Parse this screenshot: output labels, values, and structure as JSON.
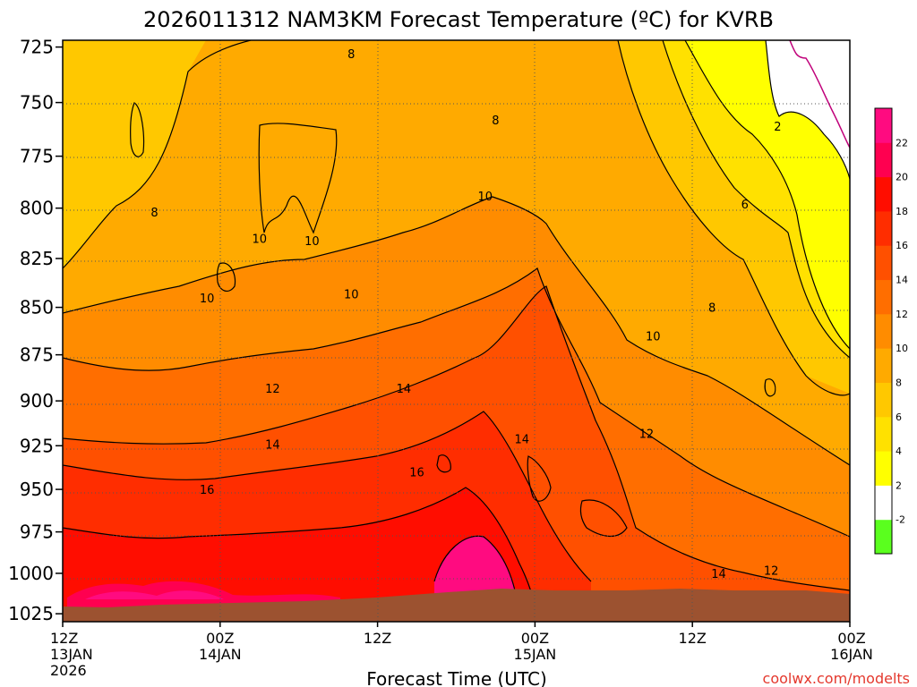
{
  "chart_data": {
    "type": "heatmap",
    "title": "2026011312 NAM3KM Forecast Temperature (ºC) for KVRB",
    "xlabel": "Forecast Time (UTC)",
    "ylabel": "",
    "credit": "coolwx.com/modelts",
    "y_axis": {
      "scale": "pressure (hPa, inverted)",
      "ylim": [
        1030,
        722
      ],
      "ticks": [
        "725",
        "750",
        "775",
        "800",
        "825",
        "850",
        "875",
        "900",
        "925",
        "950",
        "975",
        "1000",
        "1025"
      ]
    },
    "x_axis": {
      "xlim_hours": [
        0,
        60
      ],
      "ticks": [
        {
          "hour": 0,
          "line1": "12Z",
          "line2": "13JAN",
          "line3": "2026"
        },
        {
          "hour": 12,
          "line1": "00Z",
          "line2": "14JAN",
          "line3": ""
        },
        {
          "hour": 24,
          "line1": "12Z",
          "line2": "",
          "line3": ""
        },
        {
          "hour": 36,
          "line1": "00Z",
          "line2": "15JAN",
          "line3": ""
        },
        {
          "hour": 48,
          "line1": "12Z",
          "line2": "",
          "line3": ""
        },
        {
          "hour": 60,
          "line1": "00Z",
          "line2": "16JAN",
          "line3": ""
        }
      ]
    },
    "grid": true,
    "color_scale": [
      {
        "label": "-2",
        "color": "#5aff1e"
      },
      {
        "label": "2",
        "color": "#ffffff"
      },
      {
        "label": "4",
        "color": "#ffff00"
      },
      {
        "label": "6",
        "color": "#ffe100"
      },
      {
        "label": "8",
        "color": "#ffc800"
      },
      {
        "label": "10",
        "color": "#ffaa00"
      },
      {
        "label": "12",
        "color": "#ff8c00"
      },
      {
        "label": "14",
        "color": "#ff6e00"
      },
      {
        "label": "16",
        "color": "#ff5000"
      },
      {
        "label": "18",
        "color": "#ff2d00"
      },
      {
        "label": "20",
        "color": "#ff0d00"
      },
      {
        "label": "22",
        "color": "#ff0050"
      },
      {
        "label": "",
        "color": "#ff0b80"
      }
    ],
    "contour_labels": [
      {
        "text": "8",
        "hour": 22.0,
        "p": 728
      },
      {
        "text": "8",
        "hour": 33.0,
        "p": 758
      },
      {
        "text": "2",
        "hour": 54.5,
        "p": 761
      },
      {
        "text": "10",
        "hour": 32.2,
        "p": 794
      },
      {
        "text": "6",
        "hour": 52.0,
        "p": 798
      },
      {
        "text": "8",
        "hour": 7.0,
        "p": 802
      },
      {
        "text": "10",
        "hour": 15.0,
        "p": 815
      },
      {
        "text": "10",
        "hour": 19.0,
        "p": 816
      },
      {
        "text": "10",
        "hour": 22.0,
        "p": 843
      },
      {
        "text": "10",
        "hour": 11.0,
        "p": 845
      },
      {
        "text": "8",
        "hour": 49.5,
        "p": 850
      },
      {
        "text": "10",
        "hour": 45.0,
        "p": 865
      },
      {
        "text": "12",
        "hour": 16.0,
        "p": 893
      },
      {
        "text": "14",
        "hour": 26.0,
        "p": 893
      },
      {
        "text": "14",
        "hour": 35.0,
        "p": 921
      },
      {
        "text": "12",
        "hour": 44.5,
        "p": 918
      },
      {
        "text": "14",
        "hour": 16.0,
        "p": 924
      },
      {
        "text": "16",
        "hour": 27.0,
        "p": 940
      },
      {
        "text": "16",
        "hour": 11.0,
        "p": 950
      },
      {
        "text": "12",
        "hour": 54.0,
        "p": 998
      },
      {
        "text": "14",
        "hour": 50.0,
        "p": 1000
      }
    ]
  }
}
